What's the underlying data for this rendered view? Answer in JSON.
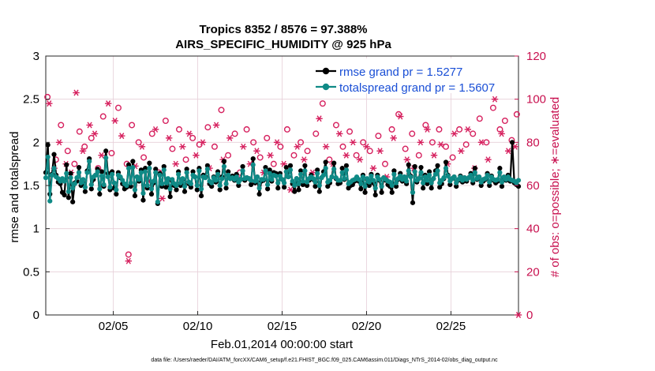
{
  "chart_data": {
    "type": "line",
    "title": "Tropics 8352 / 8576 = 97.388%",
    "subtitle": "AIRS_SPECIFIC_HUMIDITY @ 925 hPa",
    "xlabel": "Feb.01,2014 00:00:00 start",
    "ylabel_left": "rmse and totalspread",
    "ylabel_right": "# of obs: o=possible; ∗=evaluated",
    "ylim_left": [
      0,
      3
    ],
    "ylim_right": [
      0,
      120
    ],
    "xlim": [
      1.0,
      29.0
    ],
    "xticks": [
      5,
      10,
      15,
      20,
      25
    ],
    "xtick_labels": [
      "02/05",
      "02/10",
      "02/15",
      "02/20",
      "02/25"
    ],
    "yticks_left": [
      "0",
      "0.5",
      "1",
      "1.5",
      "2",
      "2.5",
      "3"
    ],
    "yticks_right": [
      "0",
      "20",
      "40",
      "60",
      "80",
      "100",
      "120"
    ],
    "legend": [
      "rmse grand pr = 1.5277",
      "totalspread grand pr = 1.5607"
    ],
    "footnote": "data file: /Users/raeder/DAI/ATM_forcXX/CAM6_setup/f.e21.FHIST_BGC.f09_025.CAM6assim.011/Diags_NTrS_2014-02/obs_diag_output.nc",
    "colors": {
      "rmse": "#000000",
      "totalspread": "#0f8a86",
      "obs": "#d6205e",
      "legend_text": "#1a4fd6",
      "grid": "#e6cfd8"
    },
    "series": [
      {
        "name": "rmse",
        "values": [
          1.65,
          1.97,
          1.4,
          1.63,
          1.86,
          1.62,
          1.54,
          1.52,
          1.42,
          1.39,
          1.74,
          1.36,
          1.64,
          1.31,
          1.53,
          1.55,
          1.71,
          1.5,
          1.53,
          1.43,
          1.67,
          1.81,
          1.46,
          1.57,
          1.62,
          1.69,
          1.4,
          1.66,
          1.49,
          1.9,
          1.64,
          1.45,
          1.66,
          1.47,
          1.4,
          1.65,
          1.59,
          1.52,
          1.46,
          1.48,
          1.74,
          1.49,
          1.78,
          1.38,
          1.6,
          1.55,
          1.68,
          1.33,
          1.7,
          1.47,
          1.76,
          1.4,
          1.53,
          1.69,
          1.29,
          1.64,
          1.49,
          1.72,
          1.48,
          1.57,
          1.37,
          1.55,
          1.5,
          1.45,
          1.66,
          1.5,
          1.57,
          1.43,
          1.69,
          1.52,
          1.48,
          1.66,
          1.6,
          1.45,
          1.7,
          1.38,
          1.62,
          1.6,
          1.73,
          1.52,
          1.49,
          1.6,
          1.54,
          1.66,
          1.45,
          1.6,
          1.78,
          1.47,
          1.66,
          1.58,
          1.61,
          1.56,
          1.63,
          1.5,
          1.57,
          1.72,
          1.56,
          1.59,
          1.58,
          1.51,
          1.81,
          1.53,
          1.6,
          1.4,
          1.55,
          1.56,
          1.71,
          1.46,
          1.68,
          1.55,
          1.65,
          1.64,
          1.47,
          1.64,
          1.57,
          1.48,
          1.71,
          1.6,
          1.73,
          1.52,
          1.43,
          1.58,
          1.45,
          1.67,
          1.51,
          1.73,
          1.5,
          1.56,
          1.62,
          1.57,
          1.49,
          1.68,
          1.43,
          1.59,
          1.66,
          1.77,
          1.49,
          1.53,
          1.6,
          1.76,
          1.58,
          1.52,
          1.53,
          1.7,
          1.57,
          1.73,
          1.47,
          1.5,
          1.51,
          1.55,
          1.59,
          1.55,
          1.46,
          1.62,
          1.42,
          1.57,
          1.5,
          1.63,
          1.53,
          1.39,
          1.62,
          1.56,
          1.42,
          1.59,
          1.56,
          1.51,
          1.49,
          1.42,
          1.67,
          1.49,
          1.57,
          1.64,
          1.55,
          1.6,
          1.52,
          1.74,
          1.61,
          1.3,
          1.72,
          1.54,
          1.58,
          1.71,
          1.47,
          1.62,
          1.52,
          1.66,
          1.47,
          1.58,
          1.67,
          1.73,
          1.48,
          1.52,
          1.58,
          1.77,
          1.62,
          1.51,
          1.58,
          1.6,
          1.49,
          1.56,
          1.61,
          1.54,
          1.59,
          1.55,
          1.59,
          1.64,
          1.53,
          1.7,
          1.57,
          1.6,
          1.5,
          1.55,
          1.57,
          1.64,
          1.5,
          1.61,
          1.56,
          1.53,
          1.55,
          1.7,
          1.49,
          1.59,
          1.56,
          1.62,
          1.55,
          2.0,
          1.53,
          1.51,
          1.49
        ]
      },
      {
        "name": "totalspread",
        "values": [
          1.59,
          1.83,
          1.32,
          1.62,
          1.7,
          1.6,
          1.58,
          1.55,
          1.58,
          1.55,
          1.64,
          1.43,
          1.59,
          1.47,
          1.52,
          1.59,
          1.65,
          1.53,
          1.57,
          1.48,
          1.65,
          1.78,
          1.51,
          1.6,
          1.62,
          1.66,
          1.46,
          1.61,
          1.51,
          1.82,
          1.6,
          1.48,
          1.63,
          1.53,
          1.45,
          1.62,
          1.6,
          1.56,
          1.52,
          1.5,
          1.7,
          1.53,
          1.71,
          1.45,
          1.6,
          1.57,
          1.65,
          1.41,
          1.66,
          1.5,
          1.7,
          1.46,
          1.55,
          1.65,
          1.31,
          1.62,
          1.52,
          1.68,
          1.53,
          1.58,
          1.46,
          1.57,
          1.52,
          1.5,
          1.63,
          1.53,
          1.58,
          1.49,
          1.65,
          1.54,
          1.52,
          1.62,
          1.6,
          1.5,
          1.67,
          1.46,
          1.6,
          1.59,
          1.69,
          1.55,
          1.53,
          1.59,
          1.56,
          1.63,
          1.5,
          1.58,
          1.72,
          1.52,
          1.62,
          1.58,
          1.59,
          1.57,
          1.6,
          1.54,
          1.57,
          1.67,
          1.58,
          1.59,
          1.58,
          1.56,
          1.74,
          1.55,
          1.6,
          1.47,
          1.57,
          1.57,
          1.67,
          1.51,
          1.64,
          1.57,
          1.62,
          1.61,
          1.53,
          1.61,
          1.57,
          1.53,
          1.66,
          1.6,
          1.68,
          1.55,
          1.5,
          1.58,
          1.52,
          1.63,
          1.55,
          1.67,
          1.54,
          1.58,
          1.6,
          1.58,
          1.54,
          1.64,
          1.5,
          1.59,
          1.62,
          1.7,
          1.54,
          1.56,
          1.6,
          1.69,
          1.59,
          1.56,
          1.56,
          1.65,
          1.58,
          1.68,
          1.52,
          1.54,
          1.56,
          1.57,
          1.6,
          1.57,
          1.52,
          1.6,
          1.49,
          1.58,
          1.54,
          1.61,
          1.56,
          1.47,
          1.6,
          1.57,
          1.49,
          1.59,
          1.57,
          1.55,
          1.54,
          1.5,
          1.63,
          1.53,
          1.58,
          1.61,
          1.57,
          1.6,
          1.55,
          1.67,
          1.6,
          1.42,
          1.66,
          1.56,
          1.58,
          1.65,
          1.53,
          1.6,
          1.56,
          1.62,
          1.53,
          1.58,
          1.63,
          1.67,
          1.53,
          1.56,
          1.59,
          1.7,
          1.61,
          1.55,
          1.58,
          1.6,
          1.53,
          1.57,
          1.6,
          1.56,
          1.59,
          1.57,
          1.59,
          1.62,
          1.56,
          1.65,
          1.58,
          1.6,
          1.54,
          1.57,
          1.58,
          1.62,
          1.54,
          1.6,
          1.57,
          1.56,
          1.57,
          1.65,
          1.54,
          1.6,
          1.57,
          1.6,
          1.57,
          1.56,
          1.55,
          1.53,
          1.56
        ]
      }
    ],
    "obs_possible": [
      {
        "x": 1.1,
        "v": 101
      },
      {
        "x": 1.6,
        "v": 72
      },
      {
        "x": 1.9,
        "v": 88
      },
      {
        "x": 2.3,
        "v": 76
      },
      {
        "x": 2.7,
        "v": 70
      },
      {
        "x": 3.0,
        "v": 85
      },
      {
        "x": 3.3,
        "v": 78
      },
      {
        "x": 3.7,
        "v": 82
      },
      {
        "x": 4.1,
        "v": 68
      },
      {
        "x": 4.4,
        "v": 92
      },
      {
        "x": 4.9,
        "v": 75
      },
      {
        "x": 5.3,
        "v": 96
      },
      {
        "x": 5.8,
        "v": 70
      },
      {
        "x": 6.1,
        "v": 88
      },
      {
        "x": 6.5,
        "v": 80
      },
      {
        "x": 6.8,
        "v": 73
      },
      {
        "x": 7.3,
        "v": 84
      },
      {
        "x": 7.7,
        "v": 66
      },
      {
        "x": 8.1,
        "v": 90
      },
      {
        "x": 8.5,
        "v": 77
      },
      {
        "x": 8.9,
        "v": 86
      },
      {
        "x": 9.3,
        "v": 72
      },
      {
        "x": 9.7,
        "v": 82
      },
      {
        "x": 10.1,
        "v": 79
      },
      {
        "x": 10.6,
        "v": 87
      },
      {
        "x": 11.0,
        "v": 78
      },
      {
        "x": 11.4,
        "v": 95
      },
      {
        "x": 11.8,
        "v": 74
      },
      {
        "x": 12.2,
        "v": 84
      },
      {
        "x": 12.5,
        "v": 66
      },
      {
        "x": 12.9,
        "v": 86
      },
      {
        "x": 13.3,
        "v": 80
      },
      {
        "x": 13.7,
        "v": 73
      },
      {
        "x": 14.1,
        "v": 82
      },
      {
        "x": 14.5,
        "v": 70
      },
      {
        "x": 14.9,
        "v": 78
      },
      {
        "x": 15.3,
        "v": 86
      },
      {
        "x": 15.7,
        "v": 74
      },
      {
        "x": 16.1,
        "v": 80
      },
      {
        "x": 16.5,
        "v": 76
      },
      {
        "x": 17.0,
        "v": 84
      },
      {
        "x": 17.4,
        "v": 98
      },
      {
        "x": 17.8,
        "v": 72
      },
      {
        "x": 18.2,
        "v": 88
      },
      {
        "x": 18.6,
        "v": 78
      },
      {
        "x": 19.0,
        "v": 85
      },
      {
        "x": 19.4,
        "v": 74
      },
      {
        "x": 19.8,
        "v": 80
      },
      {
        "x": 20.2,
        "v": 76
      },
      {
        "x": 20.7,
        "v": 83
      },
      {
        "x": 21.1,
        "v": 70
      },
      {
        "x": 21.5,
        "v": 86
      },
      {
        "x": 21.9,
        "v": 93
      },
      {
        "x": 22.3,
        "v": 77
      },
      {
        "x": 22.7,
        "v": 84
      },
      {
        "x": 23.1,
        "v": 74
      },
      {
        "x": 23.5,
        "v": 88
      },
      {
        "x": 23.9,
        "v": 80
      },
      {
        "x": 24.3,
        "v": 86
      },
      {
        "x": 24.7,
        "v": 78
      },
      {
        "x": 25.1,
        "v": 73
      },
      {
        "x": 25.5,
        "v": 86
      },
      {
        "x": 25.9,
        "v": 79
      },
      {
        "x": 26.3,
        "v": 84
      },
      {
        "x": 26.7,
        "v": 91
      },
      {
        "x": 27.1,
        "v": 80
      },
      {
        "x": 27.5,
        "v": 96
      },
      {
        "x": 27.9,
        "v": 86
      },
      {
        "x": 28.2,
        "v": 90
      },
      {
        "x": 28.6,
        "v": 81
      },
      {
        "x": 28.9,
        "v": 93
      },
      {
        "x": 5.9,
        "v": 28
      }
    ],
    "obs_evaluated": [
      {
        "x": 1.2,
        "v": 98
      },
      {
        "x": 1.5,
        "v": 68
      },
      {
        "x": 1.8,
        "v": 80
      },
      {
        "x": 2.2,
        "v": 70
      },
      {
        "x": 2.5,
        "v": 66
      },
      {
        "x": 2.8,
        "v": 103
      },
      {
        "x": 3.2,
        "v": 76
      },
      {
        "x": 3.6,
        "v": 88
      },
      {
        "x": 3.9,
        "v": 84
      },
      {
        "x": 4.3,
        "v": 74
      },
      {
        "x": 4.7,
        "v": 98
      },
      {
        "x": 5.1,
        "v": 90
      },
      {
        "x": 5.5,
        "v": 83
      },
      {
        "x": 5.9,
        "v": 25
      },
      {
        "x": 6.3,
        "v": 69
      },
      {
        "x": 6.7,
        "v": 78
      },
      {
        "x": 7.1,
        "v": 62
      },
      {
        "x": 7.5,
        "v": 86
      },
      {
        "x": 7.9,
        "v": 54
      },
      {
        "x": 8.3,
        "v": 82
      },
      {
        "x": 8.7,
        "v": 70
      },
      {
        "x": 9.1,
        "v": 78
      },
      {
        "x": 9.5,
        "v": 84
      },
      {
        "x": 9.9,
        "v": 74
      },
      {
        "x": 10.3,
        "v": 80
      },
      {
        "x": 10.7,
        "v": 68
      },
      {
        "x": 11.1,
        "v": 88
      },
      {
        "x": 11.5,
        "v": 72
      },
      {
        "x": 11.9,
        "v": 82
      },
      {
        "x": 12.3,
        "v": 64
      },
      {
        "x": 12.7,
        "v": 78
      },
      {
        "x": 13.1,
        "v": 70
      },
      {
        "x": 13.5,
        "v": 76
      },
      {
        "x": 13.9,
        "v": 66
      },
      {
        "x": 14.3,
        "v": 74
      },
      {
        "x": 14.7,
        "v": 80
      },
      {
        "x": 15.1,
        "v": 70
      },
      {
        "x": 15.5,
        "v": 58
      },
      {
        "x": 15.9,
        "v": 78
      },
      {
        "x": 16.3,
        "v": 72
      },
      {
        "x": 16.8,
        "v": 66
      },
      {
        "x": 17.2,
        "v": 91
      },
      {
        "x": 17.6,
        "v": 78
      },
      {
        "x": 18.0,
        "v": 70
      },
      {
        "x": 18.4,
        "v": 84
      },
      {
        "x": 18.8,
        "v": 74
      },
      {
        "x": 19.2,
        "v": 80
      },
      {
        "x": 19.6,
        "v": 72
      },
      {
        "x": 20.0,
        "v": 78
      },
      {
        "x": 20.4,
        "v": 68
      },
      {
        "x": 20.8,
        "v": 76
      },
      {
        "x": 21.2,
        "v": 64
      },
      {
        "x": 21.6,
        "v": 82
      },
      {
        "x": 22.0,
        "v": 92
      },
      {
        "x": 22.4,
        "v": 72
      },
      {
        "x": 22.8,
        "v": 68
      },
      {
        "x": 23.2,
        "v": 80
      },
      {
        "x": 23.6,
        "v": 86
      },
      {
        "x": 24.0,
        "v": 74
      },
      {
        "x": 24.4,
        "v": 79
      },
      {
        "x": 24.8,
        "v": 70
      },
      {
        "x": 25.2,
        "v": 84
      },
      {
        "x": 25.6,
        "v": 76
      },
      {
        "x": 26.0,
        "v": 86
      },
      {
        "x": 26.4,
        "v": 68
      },
      {
        "x": 26.8,
        "v": 80
      },
      {
        "x": 27.2,
        "v": 72
      },
      {
        "x": 27.6,
        "v": 100
      },
      {
        "x": 28.0,
        "v": 84
      },
      {
        "x": 28.4,
        "v": 76
      },
      {
        "x": 28.8,
        "v": 78
      },
      {
        "x": 29.0,
        "v": 0
      }
    ]
  }
}
